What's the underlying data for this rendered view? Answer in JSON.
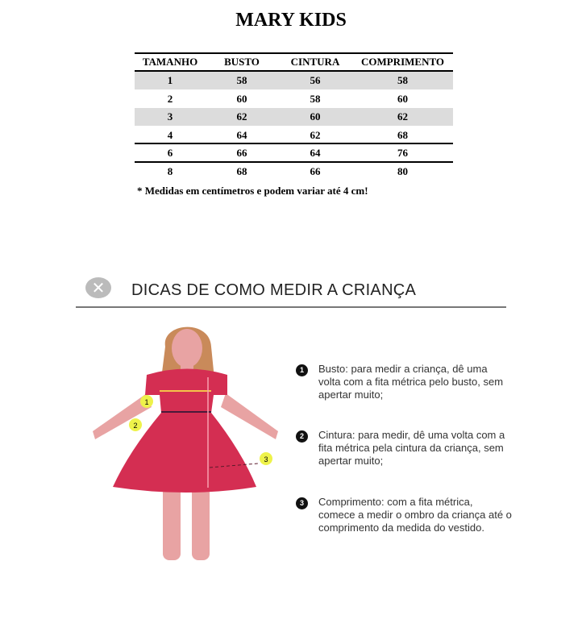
{
  "title": "MARY KIDS",
  "table": {
    "headers": [
      "TAMANHO",
      "BUSTO",
      "CINTURA",
      "COMPRIMENTO"
    ],
    "rows": [
      [
        "1",
        "58",
        "56",
        "58"
      ],
      [
        "2",
        "60",
        "58",
        "60"
      ],
      [
        "3",
        "62",
        "60",
        "62"
      ],
      [
        "4",
        "64",
        "62",
        "68"
      ],
      [
        "6",
        "66",
        "64",
        "76"
      ],
      [
        "8",
        "68",
        "66",
        "80"
      ]
    ]
  },
  "note": "* Medidas em centímetros e podem variar até 4 cm!",
  "guide": {
    "close_icon": "x-circle-icon",
    "heading": "DICAS DE COMO MEDIR A CRIANÇA",
    "markers": [
      "1",
      "2",
      "3"
    ],
    "tips": [
      {
        "num": "1",
        "text": "Busto: para medir a criança, dê uma volta com a fita métrica pelo busto, sem apertar muito;"
      },
      {
        "num": "2",
        "text": "Cintura: para medir, dê uma volta com a fita métrica pela cintura da criança, sem apertar muito;"
      },
      {
        "num": "3",
        "text": "Comprimento: com a fita métrica, comece a medir o ombro da criança até o comprimento da medida do vestido."
      }
    ],
    "colors": {
      "dress": "#d42e52",
      "skin": "#e8a3a3",
      "hair": "#c98a5a",
      "marker": "#eef24a"
    }
  }
}
